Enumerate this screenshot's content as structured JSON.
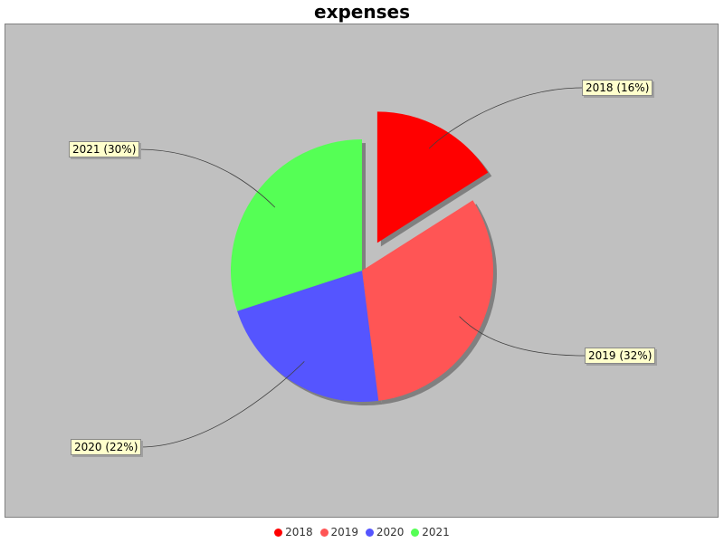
{
  "chart_data": {
    "type": "pie",
    "title": "expenses",
    "categories": [
      "2018",
      "2019",
      "2020",
      "2021"
    ],
    "values": [
      16,
      32,
      22,
      30
    ],
    "labels": [
      "2018 (16%)",
      "2019 (32%)",
      "2020 (22%)",
      "2021 (30%)"
    ],
    "colors": [
      "#ff0000",
      "#ff5555",
      "#5555ff",
      "#55ff55"
    ],
    "exploded": [
      "2018"
    ],
    "legend_position": "bottom",
    "background": "#c0c0c0"
  }
}
